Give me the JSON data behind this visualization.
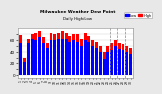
{
  "title": "Milwaukee Weather Dew Point",
  "subtitle": "Daily High/Low",
  "background_color": "#e8e8e8",
  "plot_bg_color": "#ffffff",
  "grid_color": "#cccccc",
  "high_color": "#ff0000",
  "low_color": "#0000ff",
  "days": [
    "1",
    "2",
    "3",
    "4",
    "5",
    "6",
    "7",
    "8",
    "9",
    "10",
    "11",
    "12",
    "13",
    "14",
    "15",
    "16",
    "17",
    "18",
    "19",
    "20",
    "21",
    "22",
    "23",
    "24",
    "25",
    "26",
    "27",
    "28",
    "29",
    "30"
  ],
  "high_values": [
    68,
    30,
    62,
    70,
    72,
    74,
    64,
    55,
    72,
    70,
    72,
    74,
    72,
    66,
    70,
    70,
    62,
    72,
    66,
    60,
    56,
    50,
    40,
    50,
    54,
    60,
    54,
    52,
    50,
    46
  ],
  "low_values": [
    55,
    22,
    54,
    62,
    60,
    64,
    54,
    46,
    60,
    60,
    62,
    62,
    62,
    56,
    60,
    56,
    50,
    60,
    56,
    50,
    46,
    40,
    28,
    40,
    42,
    50,
    44,
    42,
    40,
    36
  ],
  "ylim": [
    -5,
    80
  ],
  "ytick_vals": [
    0,
    10,
    20,
    30,
    40,
    50,
    60,
    70
  ],
  "ytick_labels": [
    "0",
    "",
    "20",
    "",
    "40",
    "",
    "60",
    ""
  ],
  "future_vlines": [
    23.5,
    25.5,
    27.5
  ],
  "legend_labels": [
    "Low",
    "High"
  ]
}
